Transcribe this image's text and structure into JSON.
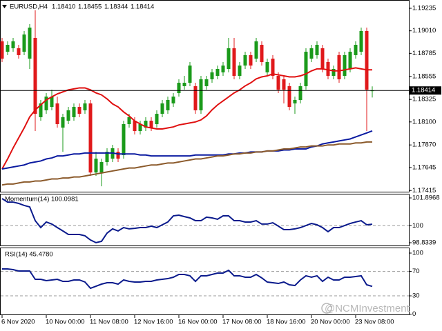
{
  "chart_data": [
    {
      "type": "candlestick",
      "title": "EURUSD,H4",
      "quote": [
        "1.18410",
        "1.18455",
        "1.18344",
        "1.18414"
      ],
      "categories": [
        "6 Nov 2020",
        null,
        null,
        null,
        null,
        null,
        null,
        null,
        "10 Nov 00:00",
        null,
        null,
        null,
        null,
        null,
        null,
        null,
        "11 Nov 08:00",
        null,
        null,
        null,
        null,
        null,
        null,
        null,
        "12 Nov 16:00",
        null,
        null,
        null,
        null,
        null,
        null,
        null,
        "16 Nov 00:00",
        null,
        null,
        null,
        null,
        null,
        null,
        null,
        "17 Nov 08:00",
        null,
        null,
        null,
        null,
        null,
        null,
        null,
        "18 Nov 16:00",
        null,
        null,
        null,
        null,
        null,
        null,
        null,
        "20 Nov 00:00",
        null,
        null,
        null,
        null,
        null,
        null,
        null,
        "23 Nov 08:00",
        null,
        null,
        null
      ],
      "open": [
        1.18905,
        1.18801,
        1.18836,
        1.18836,
        1.18801,
        1.18732,
        1.18939,
        1.18147,
        1.18216,
        1.1825,
        1.18285,
        1.18043,
        1.18112,
        1.18147,
        1.1825,
        1.18216,
        1.18285,
        1.17595,
        1.17595,
        1.17699,
        1.17733,
        1.17802,
        1.17768,
        1.18078,
        1.18112,
        1.18009,
        1.18043,
        1.18112,
        1.18078,
        1.18181,
        1.18216,
        1.18285,
        1.18388,
        1.18457,
        1.18491,
        1.18457,
        1.18216,
        1.18457,
        1.18526,
        1.1856,
        1.18595,
        1.18629,
        1.18836,
        1.1856,
        1.18663,
        1.18767,
        1.18732,
        1.1887,
        1.18595,
        1.18732,
        1.1856,
        1.18526,
        1.18457,
        1.18285,
        1.18319,
        1.18457,
        1.18732,
        1.18767,
        1.18836,
        1.18698,
        1.1856,
        1.18767,
        1.1856,
        1.18629,
        1.18767,
        1.18801,
        1.19008,
        1.1841
      ],
      "high": [
        1.18939,
        1.18905,
        1.18939,
        1.1887,
        1.19008,
        1.19077,
        1.19215,
        1.18319,
        1.18388,
        1.18422,
        1.18353,
        1.18181,
        1.1825,
        1.18285,
        1.18285,
        1.18319,
        1.18319,
        1.17802,
        1.17733,
        1.17837,
        1.17871,
        1.17837,
        1.18112,
        1.18181,
        1.18147,
        1.18112,
        1.18147,
        1.18147,
        1.18216,
        1.18319,
        1.18353,
        1.18388,
        1.18526,
        1.1856,
        1.18698,
        1.18491,
        1.1856,
        1.1856,
        1.18629,
        1.18663,
        1.18698,
        1.18939,
        1.18939,
        1.18698,
        1.18801,
        1.18801,
        1.18939,
        1.18905,
        1.18732,
        1.18767,
        1.18595,
        1.1856,
        1.18491,
        1.18353,
        1.18491,
        1.18836,
        1.1887,
        1.18905,
        1.1887,
        1.18732,
        1.18663,
        1.18801,
        1.18801,
        1.18836,
        1.18905,
        1.19042,
        1.19042,
        1.18455
      ],
      "low": [
        1.18698,
        1.18767,
        1.18801,
        1.18732,
        1.18767,
        1.18629,
        1.18009,
        1.18112,
        1.18181,
        1.18216,
        1.18043,
        1.17802,
        1.18078,
        1.18112,
        1.18147,
        1.18181,
        1.17561,
        1.17561,
        1.17457,
        1.17664,
        1.17699,
        1.17699,
        1.17733,
        1.18043,
        1.17975,
        1.17975,
        1.18009,
        1.18009,
        1.18043,
        1.18147,
        1.18181,
        1.1825,
        1.18353,
        1.18422,
        1.18457,
        1.18181,
        1.18181,
        1.18422,
        1.18491,
        1.18526,
        1.1856,
        1.18595,
        1.18526,
        1.18526,
        1.18629,
        1.18629,
        1.18698,
        1.18663,
        1.1856,
        1.18526,
        1.18388,
        1.18285,
        1.18216,
        1.18181,
        1.18285,
        1.18422,
        1.18698,
        1.18732,
        1.18595,
        1.18526,
        1.18526,
        1.18491,
        1.18526,
        1.18595,
        1.18732,
        1.18767,
        1.18009,
        1.18344
      ],
      "close": [
        1.18732,
        1.1887,
        1.18905,
        1.18767,
        1.18973,
        1.19042,
        1.18181,
        1.18285,
        1.18353,
        1.18353,
        1.18078,
        1.18147,
        1.18216,
        1.1825,
        1.18181,
        1.18285,
        1.17595,
        1.17733,
        1.17699,
        1.17802,
        1.17837,
        1.17733,
        1.18078,
        1.18147,
        1.18009,
        1.18078,
        1.18112,
        1.18043,
        1.18181,
        1.18285,
        1.18319,
        1.18353,
        1.18491,
        1.18491,
        1.18663,
        1.18216,
        1.18526,
        1.18526,
        1.18595,
        1.18629,
        1.18663,
        1.18836,
        1.1856,
        1.18663,
        1.18767,
        1.18663,
        1.18905,
        1.18698,
        1.18698,
        1.1856,
        1.18422,
        1.18422,
        1.1825,
        1.18319,
        1.18457,
        1.18801,
        1.18836,
        1.1887,
        1.18629,
        1.1856,
        1.18629,
        1.18526,
        1.18767,
        1.18801,
        1.1887,
        1.19008,
        1.18422,
        1.18414
      ],
      "up_color": "#1a9a1a",
      "down_color": "#e0191b",
      "series": [
        {
          "color": "#e01010",
          "values": [
            1.1763,
            1.1773,
            1.1784,
            1.1794,
            1.1804,
            1.1815,
            1.1822,
            1.1827,
            1.1832,
            1.1835,
            1.1838,
            1.184,
            1.1842,
            1.1843,
            1.1844,
            1.1844,
            1.1842,
            1.1839,
            1.1837,
            1.1833,
            1.1828,
            1.1825,
            1.182,
            1.1816,
            1.1811,
            1.1808,
            1.1805,
            1.1804,
            1.1803,
            1.1803,
            1.1804,
            1.1805,
            1.1807,
            1.1808,
            1.1809,
            1.181,
            1.1812,
            1.1816,
            1.1822,
            1.1827,
            1.1831,
            1.1835,
            1.1839,
            1.1842,
            1.1846,
            1.1849,
            1.1853,
            1.1855,
            1.1856,
            1.1858,
            1.1857,
            1.1856,
            1.1855,
            1.1855,
            1.1856,
            1.1858,
            1.1861,
            1.1863,
            1.1863,
            1.1862,
            1.1861,
            1.1861,
            1.1862,
            1.1863,
            1.1864,
            1.1863,
            1.1862,
            1.1862
          ]
        },
        {
          "color": "#0a1aa0",
          "values": [
            1.1763,
            1.1764,
            1.1765,
            1.1766,
            1.1767,
            1.1769,
            1.177,
            1.1771,
            1.1773,
            1.1774,
            1.1776,
            1.1776,
            1.1777,
            1.1778,
            1.1778,
            1.1779,
            1.1779,
            1.1779,
            1.1779,
            1.1779,
            1.1779,
            1.1778,
            1.1778,
            1.1778,
            1.1778,
            1.1777,
            1.1777,
            1.1776,
            1.1776,
            1.1776,
            1.1776,
            1.1776,
            1.1776,
            1.1776,
            1.1776,
            1.1777,
            1.1777,
            1.1777,
            1.1777,
            1.1777,
            1.1777,
            1.1778,
            1.1778,
            1.1779,
            1.1779,
            1.178,
            1.178,
            1.178,
            1.1781,
            1.1781,
            1.1781,
            1.1782,
            1.1782,
            1.1783,
            1.1783,
            1.1783,
            1.1785,
            1.1786,
            1.1788,
            1.1789,
            1.179,
            1.1791,
            1.1792,
            1.1793,
            1.1795,
            1.1797,
            1.1799,
            1.1801
          ]
        },
        {
          "color": "#8b5a2b",
          "values": [
            1.1747,
            1.1748,
            1.1748,
            1.1749,
            1.175,
            1.175,
            1.1751,
            1.1751,
            1.1752,
            1.1753,
            1.1753,
            1.1754,
            1.1754,
            1.1755,
            1.1755,
            1.1756,
            1.1757,
            1.1758,
            1.1759,
            1.176,
            1.1761,
            1.1762,
            1.1763,
            1.1764,
            1.1764,
            1.1765,
            1.1766,
            1.1767,
            1.1767,
            1.1768,
            1.1769,
            1.1769,
            1.177,
            1.1771,
            1.1772,
            1.1773,
            1.1773,
            1.1774,
            1.1775,
            1.1776,
            1.1776,
            1.1777,
            1.1778,
            1.1778,
            1.1779,
            1.1779,
            1.178,
            1.178,
            1.1781,
            1.1781,
            1.1782,
            1.1783,
            1.1783,
            1.1784,
            1.1785,
            1.1785,
            1.1786,
            1.1786,
            1.1786,
            1.1787,
            1.1787,
            1.1788,
            1.1788,
            1.1788,
            1.1789,
            1.1789,
            1.179,
            1.179
          ]
        }
      ],
      "last_price": {
        "value": 1.18414,
        "label": "1.18414"
      },
      "ylim": [
        1.17403,
        1.19304
      ],
      "yticks": [
        1.19235,
        {
          "value": 1.1901,
          "label": "1.19010"
        },
        1.18785,
        1.18555,
        1.18325,
        {
          "value": 1.181,
          "label": "1.18100"
        },
        {
          "value": 1.1787,
          "label": "1.17870"
        },
        1.17645,
        1.17415
      ],
      "grid": false
    },
    {
      "type": "line",
      "title": "Momentum(14) 100.0981",
      "series": [
        {
          "color": "#0a1a8c",
          "values": [
            101.85,
            101.61,
            101.61,
            101.52,
            101.38,
            101.28,
            100.34,
            99.87,
            100.25,
            100.11,
            99.87,
            99.64,
            99.4,
            99.4,
            99.4,
            99.31,
            99.02,
            98.84,
            98.93,
            99.49,
            99.78,
            99.64,
            99.87,
            99.78,
            99.82,
            99.87,
            99.87,
            99.97,
            99.87,
            100.06,
            100.25,
            100.67,
            100.72,
            100.62,
            100.53,
            100.34,
            100.34,
            100.58,
            100.53,
            100.44,
            100.67,
            100.67,
            100.34,
            100.34,
            100.25,
            100.25,
            100.34,
            100.11,
            100.11,
            100.2,
            99.97,
            99.73,
            99.73,
            99.78,
            99.87,
            100.01,
            100.15,
            100.06,
            99.87,
            99.59,
            99.87,
            99.87,
            100.01,
            100.15,
            100.25,
            100.34,
            100.06,
            100.0981
          ]
        }
      ],
      "ylim": [
        98.8339,
        101.8968
      ],
      "yticks": [
        101.8968,
        100,
        98.8339
      ],
      "grid": true
    },
    {
      "type": "line",
      "title": "RSI(14) 45.4780",
      "series": [
        {
          "color": "#0a1a8c",
          "values": [
            74,
            74,
            72.9,
            70.7,
            70.7,
            70.7,
            57.1,
            57.1,
            54.9,
            56,
            57.1,
            53.7,
            53.7,
            56,
            56,
            52.6,
            42.4,
            45.8,
            49.2,
            51.5,
            51.5,
            49.2,
            56,
            53.7,
            52.6,
            52.6,
            53.7,
            53.7,
            56,
            57.1,
            58.2,
            60.5,
            65,
            65,
            62.8,
            53.7,
            62.8,
            62.8,
            65,
            67.3,
            67.3,
            71.8,
            62.8,
            62.8,
            60.5,
            60.5,
            65,
            59.4,
            52.6,
            51.5,
            50.3,
            52.6,
            48.1,
            46.9,
            56,
            62.8,
            60.5,
            62.8,
            53.7,
            60.5,
            56,
            56,
            60.5,
            60.5,
            61.6,
            62.8,
            48.1,
            45.478
          ]
        }
      ],
      "ylim": [
        0,
        100
      ],
      "yticks": [
        100,
        70,
        30,
        0
      ],
      "grid": true
    }
  ],
  "watermark": "@NCMInvestment"
}
